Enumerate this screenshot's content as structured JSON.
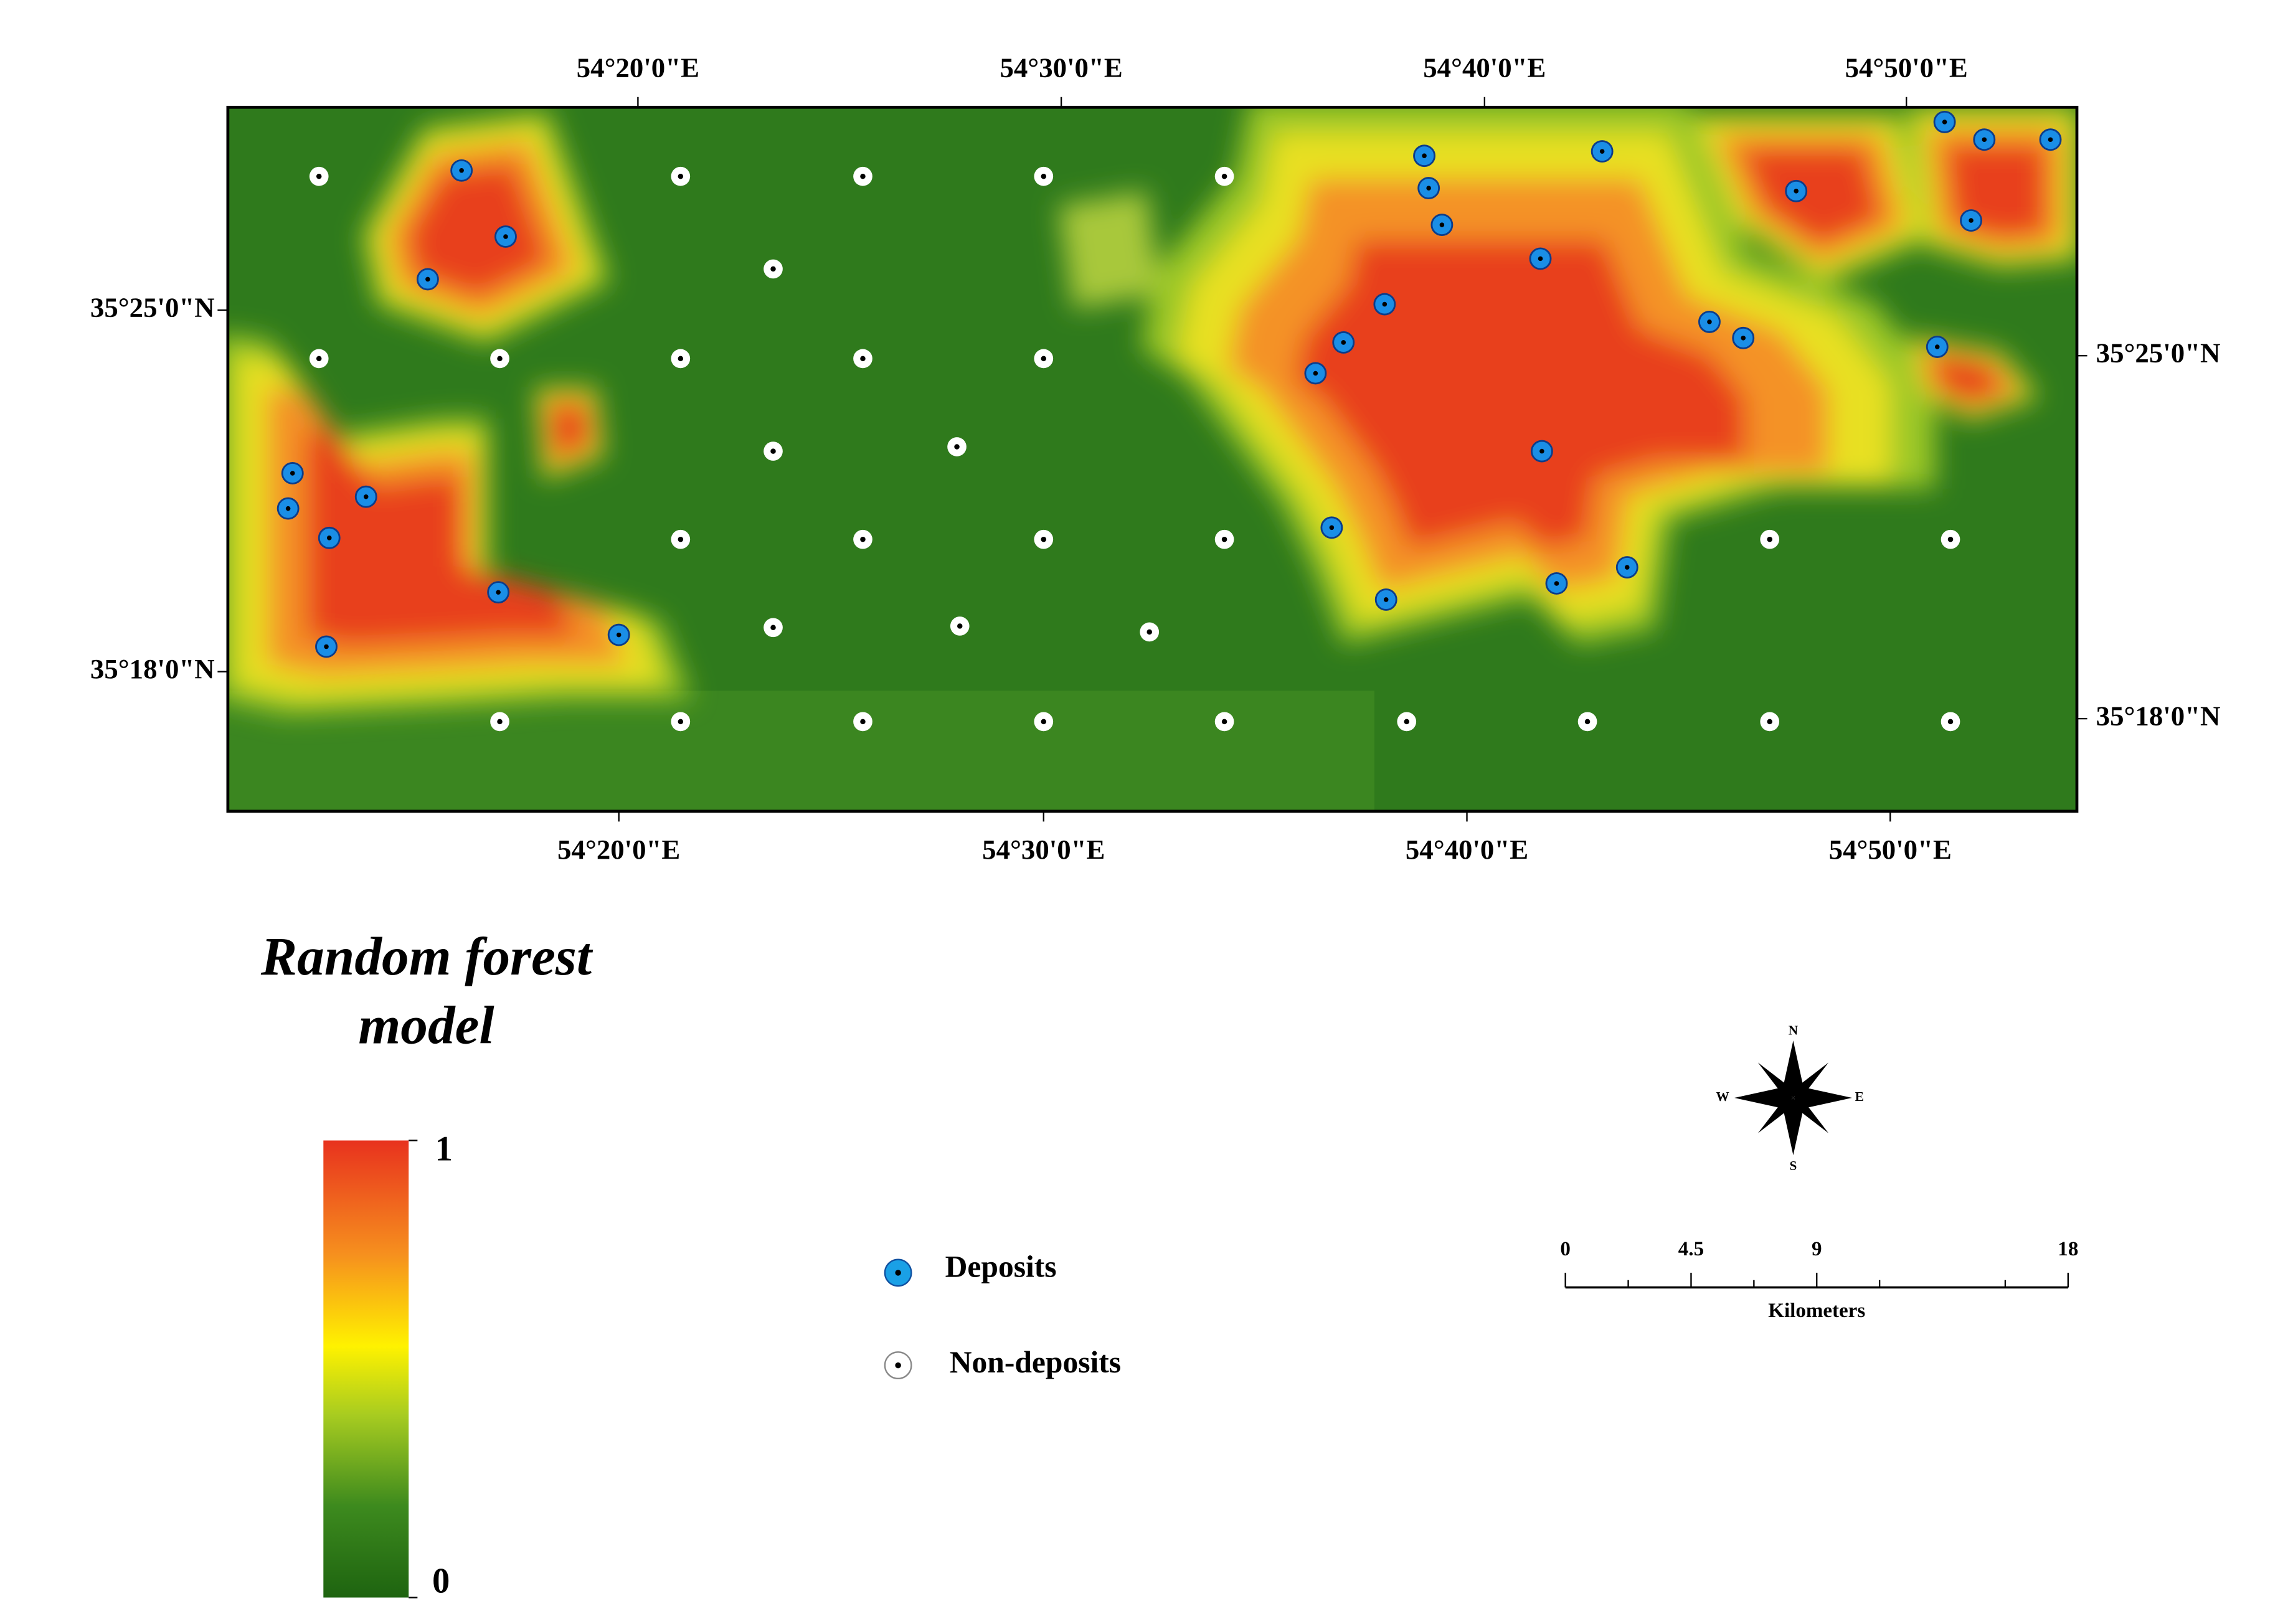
{
  "map": {
    "top_longitude_labels": [
      "54°20'0\"E",
      "54°30'0\"E",
      "54°40'0\"E",
      "54°50'0\"E"
    ],
    "bottom_longitude_labels": [
      "54°20'0\"E",
      "54°30'0\"E",
      "54°40'0\"E",
      "54°50'0\"E"
    ],
    "left_latitude_labels": [
      "35°25'0\"N",
      "35°18'0\"N"
    ],
    "right_latitude_labels": [
      "35°25'0\"N",
      "35°18'0\"N"
    ]
  },
  "legend": {
    "title": "Random forest model",
    "high": "1",
    "low": "0",
    "deposits": "Deposits",
    "non_deposits": "Non-deposits"
  },
  "compass": {
    "n": "N",
    "e": "E",
    "s": "S",
    "w": "W"
  },
  "scale_bar": {
    "ticks": [
      0,
      4.5,
      9,
      18
    ],
    "unit": "Kilometers"
  }
}
